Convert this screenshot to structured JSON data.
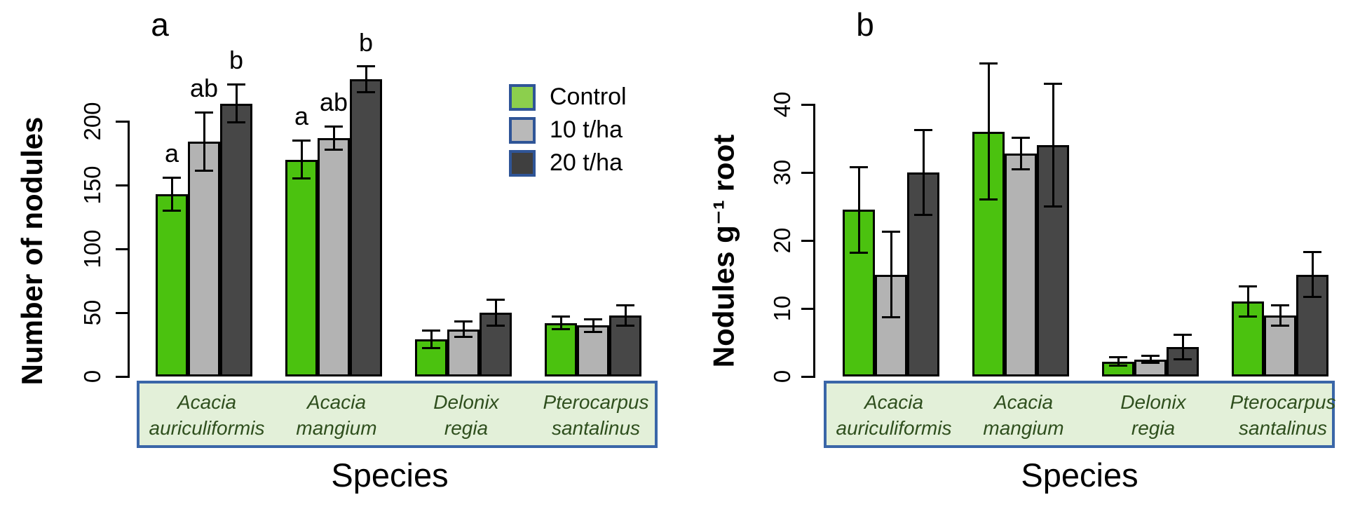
{
  "figure": {
    "background": "#FFFFFF",
    "styles": {
      "species_box_fill": "#E3F0D9",
      "species_box_border": "#3A66A8",
      "species_text_color": "#2F4F1E",
      "axis_color": "#000000",
      "bar_outline": "#000000",
      "legend_swatch_border": "#2F5597"
    }
  },
  "chart_data": [
    {
      "panel_label": "a",
      "type": "bar",
      "title": "",
      "ylabel": "Number of nodules",
      "xlabel": "Species",
      "ylim": [
        0,
        245
      ],
      "yticks": [
        0,
        50,
        100,
        150,
        200
      ],
      "grid": false,
      "error_bars": true,
      "categories": [
        "Acacia auriculiformis",
        "Acacia mangium",
        "Delonix regia",
        "Pterocarpus santalinus"
      ],
      "categories_lines": [
        [
          "Acacia",
          "auriculiformis"
        ],
        [
          "Acacia",
          "mangium"
        ],
        [
          "Delonix",
          "regia"
        ],
        [
          "Pterocarpus",
          "santalinus"
        ]
      ],
      "series": [
        {
          "name": "Control",
          "color": "#4BC20F",
          "values": [
            143,
            170,
            29,
            42
          ],
          "errors": [
            13,
            15,
            7,
            5
          ],
          "sig_letters": [
            "a",
            "a",
            "",
            ""
          ]
        },
        {
          "name": "10 t/ha",
          "color": "#B3B3B3",
          "values": [
            184,
            187,
            37,
            40
          ],
          "errors": [
            23,
            9,
            6,
            5
          ],
          "sig_letters": [
            "ab",
            "ab",
            "",
            ""
          ]
        },
        {
          "name": "20 t/ha",
          "color": "#474747",
          "values": [
            214,
            233,
            50,
            48
          ],
          "errors": [
            15,
            10,
            10,
            8
          ],
          "sig_letters": [
            "b",
            "b",
            "",
            ""
          ]
        }
      ],
      "legend": {
        "position": "top-right",
        "items": [
          {
            "label": "Control",
            "color": "#8CCF4D"
          },
          {
            "label": "10 t/ha",
            "color": "#B9B9B9"
          },
          {
            "label": "20 t/ha",
            "color": "#3F3F3F"
          }
        ]
      }
    },
    {
      "panel_label": "b",
      "type": "bar",
      "title": "",
      "ylabel": "Nodules g⁻¹ root",
      "xlabel": "Species",
      "ylim": [
        0,
        46
      ],
      "yticks": [
        0,
        10,
        20,
        30,
        40
      ],
      "grid": false,
      "error_bars": true,
      "categories": [
        "Acacia auriculiformis",
        "Acacia mangium",
        "Delonix regia",
        "Pterocarpus santalinus"
      ],
      "categories_lines": [
        [
          "Acacia",
          "auriculiformis"
        ],
        [
          "Acacia",
          "mangium"
        ],
        [
          "Delonix",
          "regia"
        ],
        [
          "Pterocarpus",
          "santalinus"
        ]
      ],
      "series": [
        {
          "name": "Control",
          "color": "#4BC20F",
          "values": [
            24.5,
            36,
            2.2,
            11
          ],
          "errors": [
            6.3,
            10,
            0.6,
            2.2
          ],
          "sig_letters": [
            "",
            "",
            "",
            ""
          ]
        },
        {
          "name": "10 t/ha",
          "color": "#B3B3B3",
          "values": [
            15,
            32.8,
            2.5,
            9
          ],
          "errors": [
            6.3,
            2.3,
            0.5,
            1.5
          ],
          "sig_letters": [
            "",
            "",
            "",
            ""
          ]
        },
        {
          "name": "20 t/ha",
          "color": "#474747",
          "values": [
            30,
            34,
            4.3,
            15
          ],
          "errors": [
            6.2,
            9,
            1.8,
            3.3
          ],
          "sig_letters": [
            "",
            "",
            "",
            ""
          ]
        }
      ],
      "legend": null
    }
  ]
}
